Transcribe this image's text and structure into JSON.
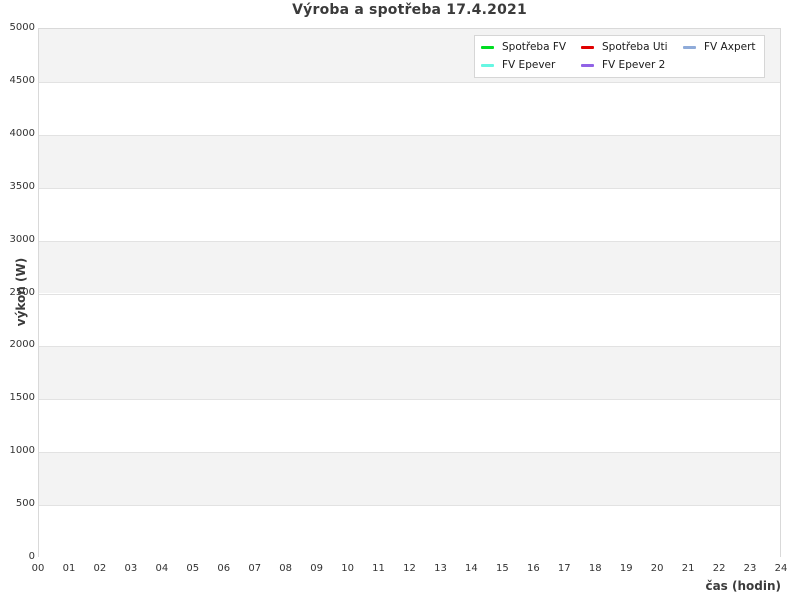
{
  "page": {
    "title": "Výroba a spotřeba 17.4.2021"
  },
  "chart_data": {
    "type": "line",
    "title": "Výroba a spotřeba 17.4.2021",
    "xlabel": "čas (hodin)",
    "ylabel": "výkon (W)",
    "xlim": [
      0,
      24
    ],
    "ylim": [
      0,
      5000
    ],
    "x_ticks": [
      "00",
      "01",
      "02",
      "03",
      "04",
      "05",
      "06",
      "07",
      "08",
      "09",
      "10",
      "11",
      "12",
      "13",
      "14",
      "15",
      "16",
      "17",
      "18",
      "19",
      "20",
      "21",
      "22",
      "23",
      "24"
    ],
    "y_ticks": [
      0,
      500,
      1000,
      1500,
      2000,
      2500,
      3000,
      3500,
      4000,
      4500,
      5000
    ],
    "grid": "horizontal gridlines every 500 with alternating background bands",
    "band_colors": {
      "even": "#ffffff",
      "odd": "#f3f3f3"
    },
    "grid_color": "#e2e2e2",
    "plot_border_color": "#d9d9d9",
    "legend_position": "top-right",
    "legend_columns": 3,
    "series": [
      {
        "name": "Spotřeba FV",
        "color": "#00dd22",
        "values": []
      },
      {
        "name": "Spotřeba Uti",
        "color": "#e00000",
        "values": []
      },
      {
        "name": "FV Axpert",
        "color": "#8fabd9",
        "values": []
      },
      {
        "name": "FV Epever",
        "color": "#66f7e3",
        "values": []
      },
      {
        "name": "FV Epever 2",
        "color": "#9163e6",
        "values": []
      }
    ]
  }
}
